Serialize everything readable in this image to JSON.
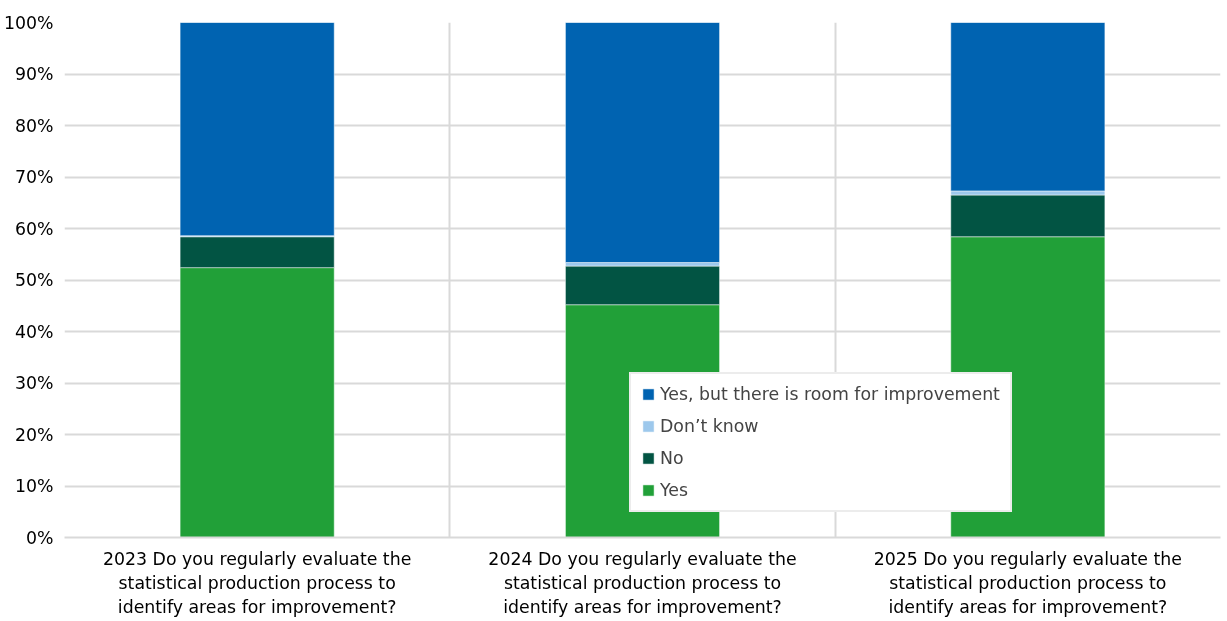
{
  "chart_data": {
    "type": "bar",
    "stacked": true,
    "categories": [
      "2023 Do you regularly evaluate the statistical production process to identify areas for improvement?",
      "2024 Do you regularly evaluate the statistical production process to identify areas for improvement?",
      "2025 Do you regularly evaluate the statistical production process to identify areas for improvement?"
    ],
    "series": [
      {
        "name": "Yes",
        "color": "#21a038",
        "values": [
          52.4,
          45.2,
          58.4
        ]
      },
      {
        "name": "No",
        "color": "#025443",
        "values": [
          6.0,
          7.5,
          8.1
        ]
      },
      {
        "name": "Don’t know",
        "color": "#9dc8ec",
        "values": [
          0.2,
          0.7,
          0.8
        ]
      },
      {
        "name": "Yes, but there is room for improvement",
        "color": "#0063b1",
        "values": [
          41.4,
          46.6,
          32.7
        ]
      }
    ],
    "ylim": [
      0,
      100
    ],
    "yticks": [
      {
        "value": 0,
        "label": "0%"
      },
      {
        "value": 10,
        "label": "10%"
      },
      {
        "value": 20,
        "label": "20%"
      },
      {
        "value": 30,
        "label": "30%"
      },
      {
        "value": 40,
        "label": "40%"
      },
      {
        "value": 50,
        "label": "50%"
      },
      {
        "value": 60,
        "label": "60%"
      },
      {
        "value": 70,
        "label": "70%"
      },
      {
        "value": 80,
        "label": "80%"
      },
      {
        "value": 90,
        "label": "90%"
      },
      {
        "value": 100,
        "label": "100%"
      }
    ],
    "grid": true,
    "legend": "bottom right"
  }
}
